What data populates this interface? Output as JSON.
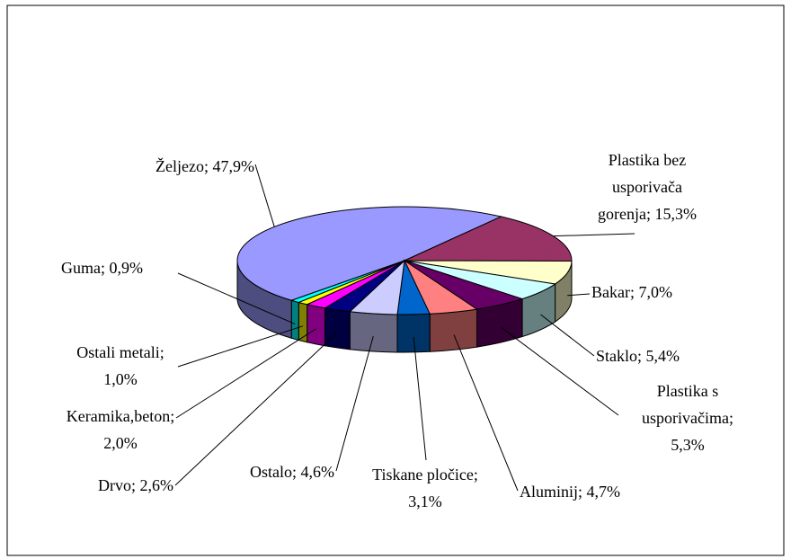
{
  "chart_data": {
    "type": "pie3d",
    "values": [
      47.9,
      15.3,
      7.0,
      5.4,
      5.3,
      4.7,
      3.1,
      4.6,
      2.6,
      2.0,
      1.0,
      0.9
    ],
    "value_labels": [
      "Željezo; 47,9%",
      "Plastika bez\nusporivača\ngorenja; 15,3%",
      "Bakar; 7,0%",
      "Staklo; 5,4%",
      "Plastika s\nusporivačima;\n5,3%",
      "Aluminij; 4,7%",
      "Tiskane pločice;\n3,1%",
      "Ostalo; 4,6%",
      "Drvo; 2,6%",
      "Keramika,beton;\n2,0%",
      "Ostali metali;\n1,0%",
      "Guma; 0,9%"
    ],
    "colors": [
      "#9999ff",
      "#993366",
      "#ffffcc",
      "#ccffff",
      "#660066",
      "#ff8080",
      "#0066cc",
      "#ccccff",
      "#000080",
      "#ff00ff",
      "#ffff00",
      "#00ffff"
    ]
  }
}
